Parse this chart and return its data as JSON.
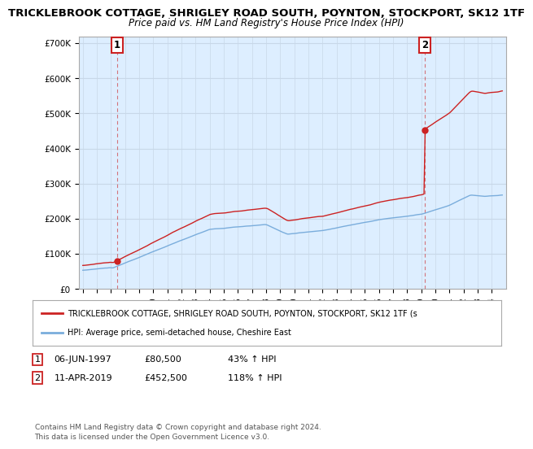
{
  "title": "TRICKLEBROOK COTTAGE, SHRIGLEY ROAD SOUTH, POYNTON, STOCKPORT, SK12 1TF",
  "subtitle": "Price paid vs. HM Land Registry's House Price Index (HPI)",
  "title_fontsize": 9.5,
  "subtitle_fontsize": 8.5,
  "ylabel_ticks": [
    "£0",
    "£100K",
    "£200K",
    "£300K",
    "£400K",
    "£500K",
    "£600K",
    "£700K"
  ],
  "ytick_values": [
    0,
    100000,
    200000,
    300000,
    400000,
    500000,
    600000,
    700000
  ],
  "ylim": [
    0,
    720000
  ],
  "xlim_start": 1994.7,
  "xlim_end": 2025.0,
  "xtick_years": [
    1995,
    1996,
    1997,
    1998,
    1999,
    2000,
    2001,
    2002,
    2003,
    2004,
    2005,
    2006,
    2007,
    2008,
    2009,
    2010,
    2011,
    2012,
    2013,
    2014,
    2015,
    2016,
    2017,
    2018,
    2019,
    2020,
    2021,
    2022,
    2023,
    2024
  ],
  "hpi_color": "#7aaddc",
  "price_color": "#cc2222",
  "chart_bg": "#ddeeff",
  "transaction1_x": 1997.44,
  "transaction1_y": 80500,
  "transaction2_x": 2019.28,
  "transaction2_y": 452500,
  "legend_red_label": "TRICKLEBROOK COTTAGE, SHRIGLEY ROAD SOUTH, POYNTON, STOCKPORT, SK12 1TF (s",
  "legend_blue_label": "HPI: Average price, semi-detached house, Cheshire East",
  "transaction1_date": "06-JUN-1997",
  "transaction1_price": "£80,500",
  "transaction1_hpi": "43% ↑ HPI",
  "transaction2_date": "11-APR-2019",
  "transaction2_price": "£452,500",
  "transaction2_hpi": "118% ↑ HPI",
  "footer": "Contains HM Land Registry data © Crown copyright and database right 2024.\nThis data is licensed under the Open Government Licence v3.0.",
  "background_color": "#ffffff",
  "grid_color": "#c8d8e8"
}
